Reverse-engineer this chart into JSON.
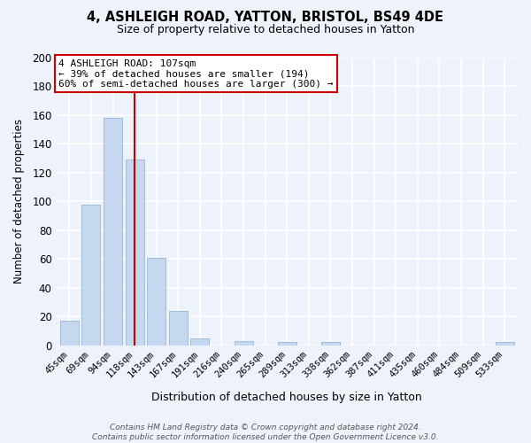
{
  "title1": "4, ASHLEIGH ROAD, YATTON, BRISTOL, BS49 4DE",
  "title2": "Size of property relative to detached houses in Yatton",
  "xlabel": "Distribution of detached houses by size in Yatton",
  "ylabel": "Number of detached properties",
  "bar_labels": [
    "45sqm",
    "69sqm",
    "94sqm",
    "118sqm",
    "143sqm",
    "167sqm",
    "191sqm",
    "216sqm",
    "240sqm",
    "265sqm",
    "289sqm",
    "313sqm",
    "338sqm",
    "362sqm",
    "387sqm",
    "411sqm",
    "435sqm",
    "460sqm",
    "484sqm",
    "509sqm",
    "533sqm"
  ],
  "bar_values": [
    17,
    98,
    158,
    129,
    61,
    24,
    5,
    0,
    3,
    0,
    2,
    0,
    2,
    0,
    0,
    0,
    0,
    0,
    0,
    0,
    2
  ],
  "bar_color": "#c5d8ef",
  "bar_edge_color": "#a0bcd8",
  "vline_x_index": 3,
  "vline_color": "#cc0000",
  "ylim": [
    0,
    200
  ],
  "yticks": [
    0,
    20,
    40,
    60,
    80,
    100,
    120,
    140,
    160,
    180,
    200
  ],
  "annotation_line1": "4 ASHLEIGH ROAD: 107sqm",
  "annotation_line2": "← 39% of detached houses are smaller (194)",
  "annotation_line3": "60% of semi-detached houses are larger (300) →",
  "annotation_box_color": "#ffffff",
  "annotation_box_edge_color": "#cc0000",
  "footer_text": "Contains HM Land Registry data © Crown copyright and database right 2024.\nContains public sector information licensed under the Open Government Licence v3.0.",
  "background_color": "#eef2fa",
  "grid_color": "#ffffff",
  "figsize": [
    6.0,
    5.0
  ],
  "dpi": 100
}
